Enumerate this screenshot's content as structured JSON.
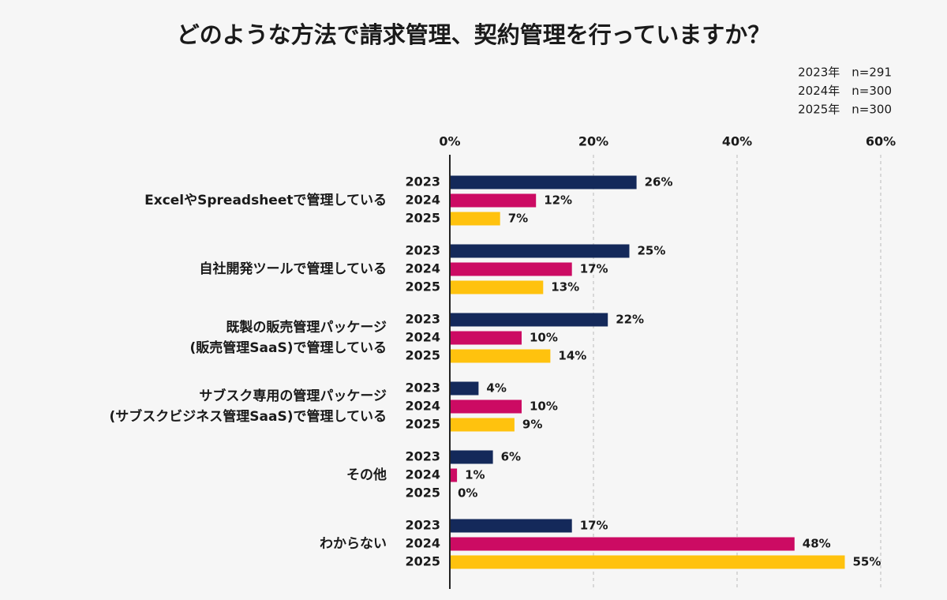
{
  "chart_data": {
    "type": "bar",
    "orientation": "horizontal",
    "title": "どのような方法で請求管理、契約管理を行っていますか？",
    "notes": [
      "2023年　n=291",
      "2024年　n=300",
      "2025年　n=300"
    ],
    "categories": [
      [
        "ExcelやSpreadsheetで管理している"
      ],
      [
        "自社開発ツールで管理している"
      ],
      [
        "既製の販売管理パッケージ",
        "(販売管理SaaS)で管理している"
      ],
      [
        "サブスク専用の管理パッケージ",
        "(サブスクビジネス管理SaaS)で管理している"
      ],
      [
        "その他"
      ],
      [
        "わからない"
      ]
    ],
    "series": [
      {
        "name": "2023",
        "color": "#14295a",
        "values": [
          26,
          25,
          22,
          4,
          6,
          17
        ],
        "value_labels": [
          "26%",
          "25%",
          "22%",
          "4%",
          "6%",
          "17%"
        ]
      },
      {
        "name": "2024",
        "color": "#cc0b63",
        "values": [
          12,
          17,
          10,
          10,
          1,
          48
        ],
        "value_labels": [
          "12%",
          "17%",
          "10%",
          "10%",
          "1%",
          "48%"
        ]
      },
      {
        "name": "2025",
        "color": "#ffc20e",
        "values": [
          7,
          13,
          14,
          9,
          0,
          55
        ],
        "value_labels": [
          "7%",
          "13%",
          "14%",
          "9%",
          "0%",
          "55%"
        ]
      }
    ],
    "xlim": [
      0,
      60
    ],
    "xticks": [
      {
        "value": 0,
        "label": "0%"
      },
      {
        "value": 20,
        "label": "20%"
      },
      {
        "value": 40,
        "label": "40%"
      },
      {
        "value": 60,
        "label": "60%"
      }
    ],
    "grid": true
  }
}
